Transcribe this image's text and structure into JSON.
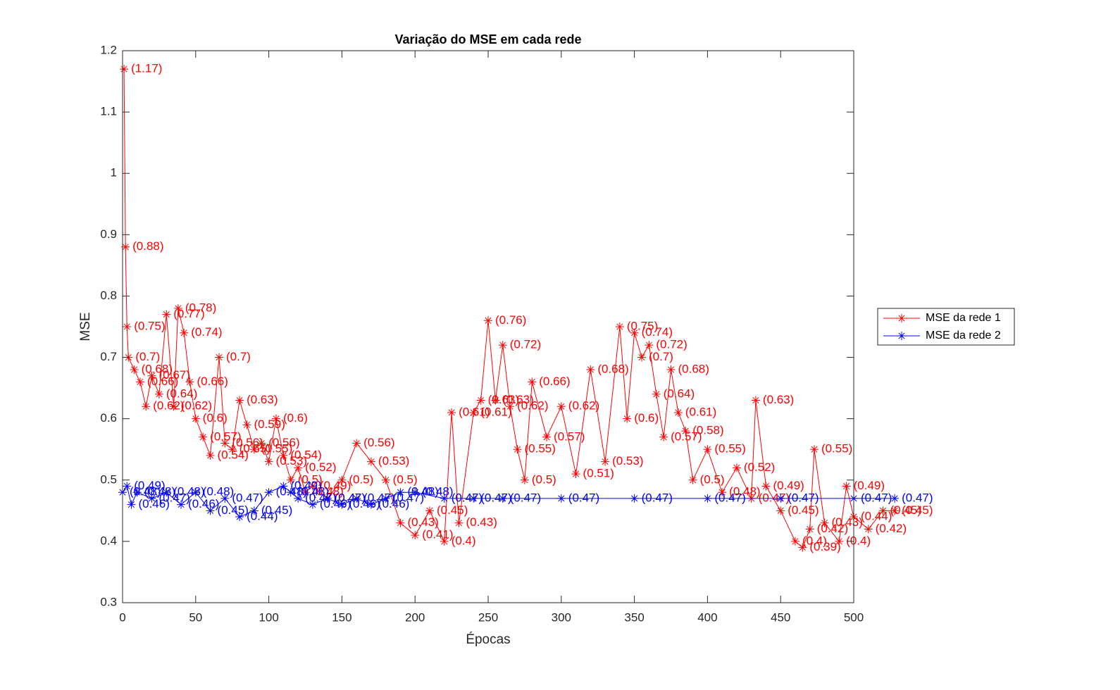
{
  "chart_data": {
    "type": "line",
    "title": "Variação do MSE em cada rede",
    "xlabel": "Épocas",
    "ylabel": "MSE",
    "xlim": [
      0,
      500
    ],
    "xticks": [
      0,
      50,
      100,
      150,
      200,
      250,
      300,
      350,
      400,
      450,
      500
    ],
    "ylim": [
      0.3,
      1.2
    ],
    "yticks": [
      0.3,
      0.4,
      0.5,
      0.6,
      0.7,
      0.8,
      0.9,
      1,
      1.1,
      1.2
    ],
    "legend": "outside-right",
    "series": [
      {
        "name": "MSE da rede 1",
        "color": "#ff0000",
        "x": [
          1,
          2,
          3,
          4,
          8,
          12,
          16,
          20,
          25,
          30,
          35,
          38,
          42,
          46,
          50,
          55,
          60,
          66,
          70,
          75,
          80,
          85,
          90,
          95,
          100,
          105,
          110,
          115,
          120,
          125,
          130,
          140,
          150,
          160,
          170,
          180,
          190,
          200,
          210,
          220,
          225,
          230,
          240,
          245,
          250,
          255,
          260,
          265,
          270,
          275,
          280,
          290,
          300,
          310,
          320,
          330,
          340,
          345,
          350,
          355,
          360,
          365,
          370,
          375,
          380,
          385,
          390,
          400,
          410,
          420,
          430,
          433,
          440,
          450,
          460,
          465,
          470,
          473,
          480,
          490,
          495,
          500,
          510,
          520,
          528
        ],
        "values": [
          1.17,
          0.88,
          0.75,
          0.7,
          0.68,
          0.66,
          0.62,
          0.67,
          0.64,
          0.77,
          0.62,
          0.78,
          0.74,
          0.66,
          0.6,
          0.57,
          0.54,
          0.7,
          0.56,
          0.55,
          0.63,
          0.59,
          0.55,
          0.56,
          0.53,
          0.6,
          0.54,
          0.5,
          0.52,
          0.48,
          0.49,
          0.47,
          0.5,
          0.56,
          0.53,
          0.5,
          0.43,
          0.41,
          0.45,
          0.4,
          0.61,
          0.43,
          0.61,
          0.63,
          0.76,
          0.63,
          0.72,
          0.62,
          0.55,
          0.5,
          0.66,
          0.57,
          0.62,
          0.51,
          0.68,
          0.53,
          0.75,
          0.6,
          0.74,
          0.7,
          0.72,
          0.64,
          0.57,
          0.68,
          0.61,
          0.58,
          0.5,
          0.55,
          0.48,
          0.52,
          0.47,
          0.63,
          0.49,
          0.45,
          0.4,
          0.39,
          0.42,
          0.55,
          0.43,
          0.4,
          0.49,
          0.44,
          0.42,
          0.45,
          0.45
        ],
        "value_labels": [
          "(1.17)",
          "(0.88)",
          "(0.75)",
          "(0.7)",
          "(0.68)",
          "(0.66)",
          "(0.62)",
          "(0.67)",
          "(0.64)",
          "(0.77)",
          "(0.62)",
          "(0.78)",
          "(0.74)",
          "(0.66)",
          "(0.6)",
          "(0.57)",
          "(0.54)",
          "(0.7)",
          "(0.56)",
          "(0.55)",
          "(0.63)",
          "(0.59)",
          "(0.55)",
          "(0.56)",
          "(0.53)",
          "(0.6)",
          "(0.54)",
          "(0.5)",
          "(0.52)",
          "(0.48)",
          "(0.49)",
          "(0.47)",
          "(0.5)",
          "(0.56)",
          "(0.53)",
          "(0.5)",
          "(0.43)",
          "(0.41)",
          "(0.45)",
          "(0.4)",
          "(0.61)",
          "(0.43)",
          "(0.61)",
          "(0.63)",
          "(0.76)",
          "(0.63)",
          "(0.72)",
          "(0.62)",
          "(0.55)",
          "(0.5)",
          "(0.66)",
          "(0.57)",
          "(0.62)",
          "(0.51)",
          "(0.68)",
          "(0.53)",
          "(0.75)",
          "(0.6)",
          "(0.74)",
          "(0.7)",
          "(0.72)",
          "(0.64)",
          "(0.57)",
          "(0.68)",
          "(0.61)",
          "(0.58)",
          "(0.5)",
          "(0.55)",
          "(0.48)",
          "(0.52)",
          "(0.47)",
          "(0.63)",
          "(0.49)",
          "(0.45)",
          "(0.4)",
          "(0.39)",
          "(0.42)",
          "(0.55)",
          "(0.43)",
          "(0.4)",
          "(0.49)",
          "(0.44)",
          "(0.42)",
          "(0.45)",
          "(0.45)"
        ]
      },
      {
        "name": "MSE da rede 2",
        "color": "#0000ff",
        "x": [
          0,
          3,
          6,
          10,
          20,
          30,
          40,
          50,
          60,
          70,
          80,
          90,
          100,
          110,
          115,
          120,
          130,
          140,
          150,
          160,
          170,
          180,
          190,
          200,
          220,
          240,
          260,
          300,
          350,
          400,
          450,
          500,
          528
        ],
        "values": [
          0.48,
          0.49,
          0.46,
          0.48,
          0.47,
          0.48,
          0.46,
          0.48,
          0.45,
          0.47,
          0.44,
          0.45,
          0.48,
          0.49,
          0.48,
          0.47,
          0.46,
          0.47,
          0.46,
          0.47,
          0.46,
          0.47,
          0.48,
          0.48,
          0.47,
          0.47,
          0.47,
          0.47,
          0.47,
          0.47,
          0.47,
          0.47,
          0.47
        ],
        "value_labels": [
          "(0.48)",
          "(0.49)",
          "(0.46)",
          "(0.48)",
          "(0.47)",
          "(0.48)",
          "(0.46)",
          "(0.48)",
          "(0.45)",
          "(0.47)",
          "(0.44)",
          "(0.45)",
          "(0.48)",
          "(0.49)",
          "(0.48)",
          "(0.47)",
          "(0.46)",
          "(0.47)",
          "(0.46)",
          "(0.47)",
          "(0.46)",
          "(0.47)",
          "(0.48)",
          "(0.48)",
          "(0.47)",
          "(0.47)",
          "(0.47)",
          "(0.47)",
          "(0.47)",
          "(0.47)",
          "(0.47)",
          "(0.47)",
          "(0.47)"
        ]
      }
    ]
  }
}
